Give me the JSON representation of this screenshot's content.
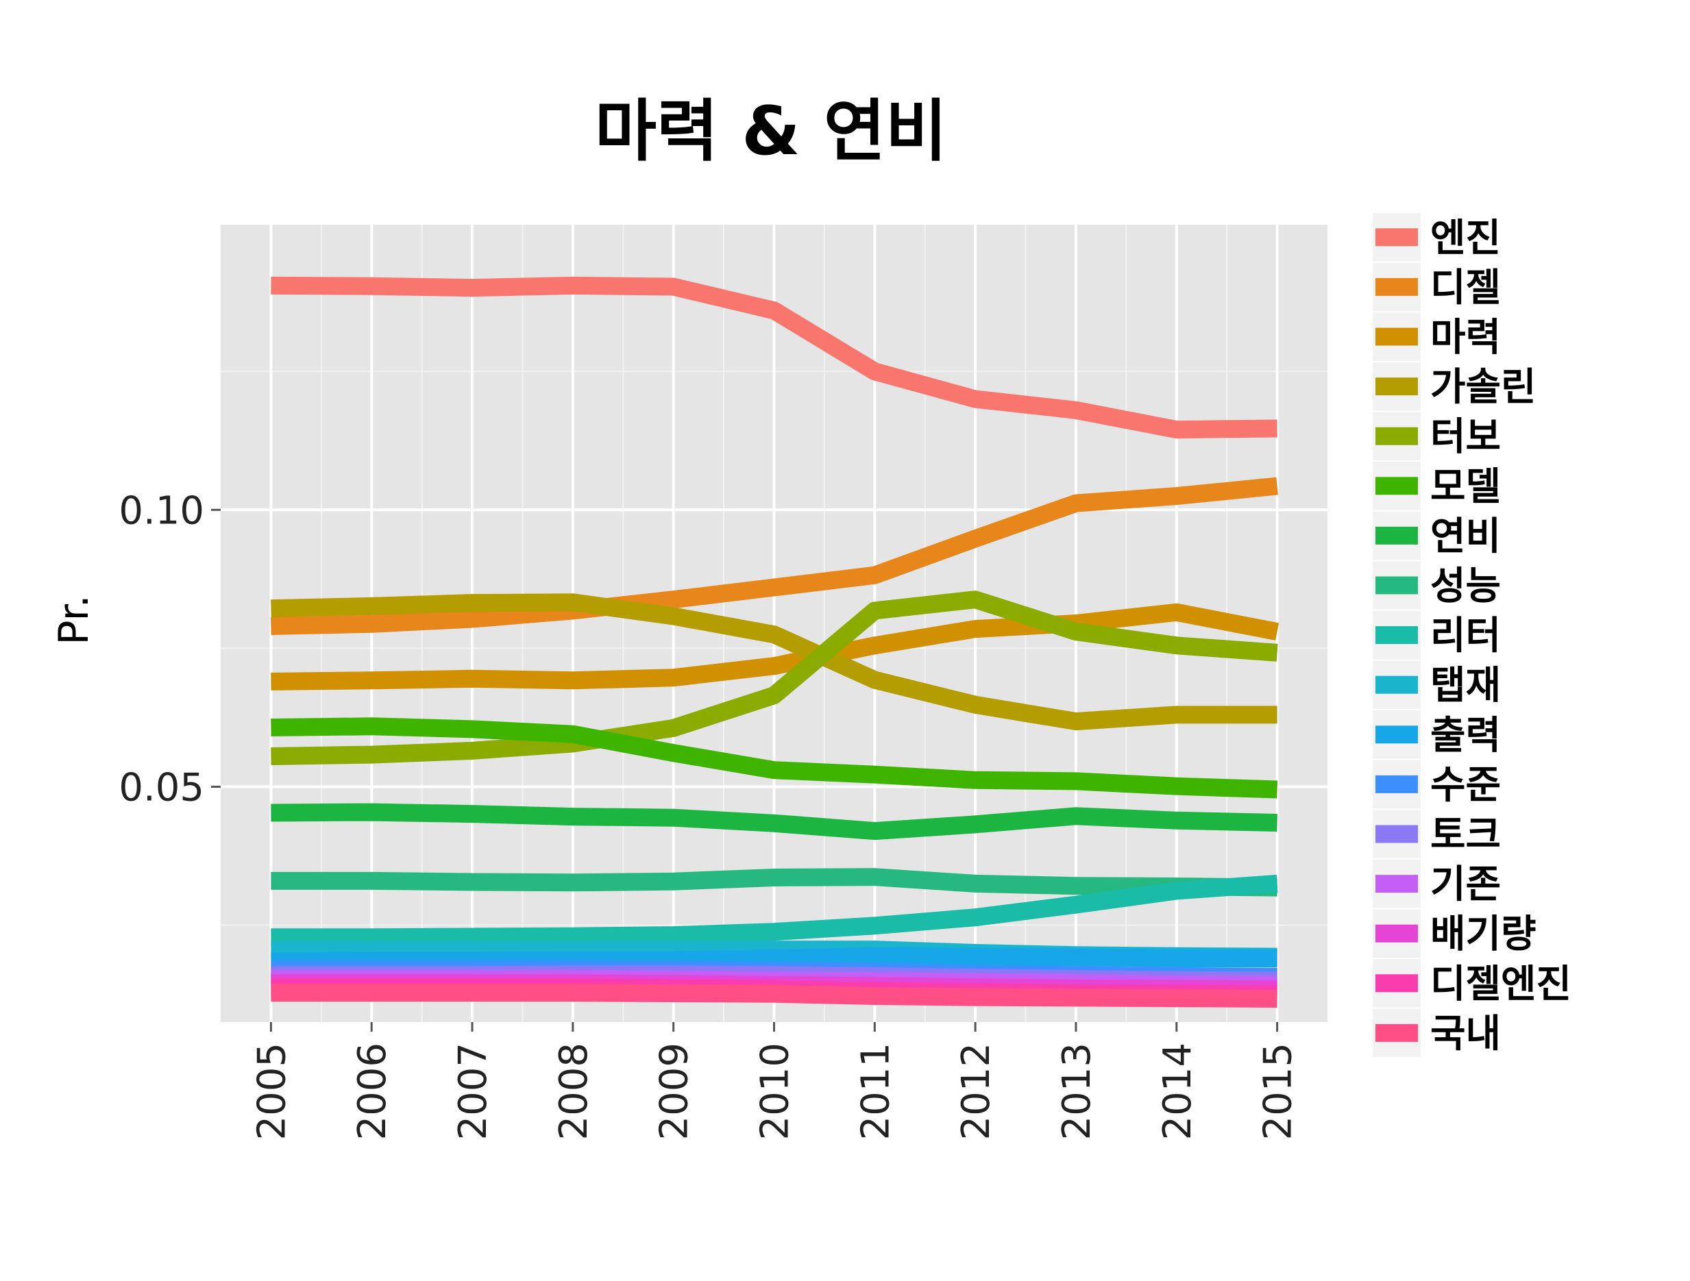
{
  "chart_data": {
    "type": "line",
    "title": "마력 & 연비",
    "xlabel": "",
    "ylabel": "Pr.",
    "x": [
      2005,
      2006,
      2007,
      2008,
      2009,
      2010,
      2011,
      2012,
      2013,
      2014,
      2015
    ],
    "x_tick_labels": [
      "2005",
      "2006",
      "2007",
      "2008",
      "2009",
      "2010",
      "2011",
      "2012",
      "2013",
      "2014",
      "2015"
    ],
    "y_ticks": [
      0.05,
      0.1
    ],
    "y_tick_labels": [
      "0.05",
      "0.10"
    ],
    "ylim": [
      0.0075,
      0.1515
    ],
    "grid": true,
    "legend_position": "right",
    "series": [
      {
        "name": "엔진",
        "color": "#F8766D",
        "values": [
          0.1405,
          0.1404,
          0.1401,
          0.1405,
          0.1403,
          0.136,
          0.125,
          0.12,
          0.118,
          0.1145,
          0.1147
        ]
      },
      {
        "name": "디젤",
        "color": "#E7861B",
        "values": [
          0.079,
          0.0794,
          0.0803,
          0.0818,
          0.0838,
          0.086,
          0.0882,
          0.0948,
          0.1012,
          0.1025,
          0.1043
        ]
      },
      {
        "name": "마력",
        "color": "#D09000",
        "values": [
          0.069,
          0.0692,
          0.0695,
          0.0692,
          0.0697,
          0.0718,
          0.0755,
          0.0785,
          0.0795,
          0.0815,
          0.078
        ]
      },
      {
        "name": "가솔린",
        "color": "#B49D00",
        "values": [
          0.0822,
          0.0826,
          0.0832,
          0.0833,
          0.0808,
          0.0775,
          0.0693,
          0.0648,
          0.0618,
          0.063,
          0.063
        ]
      },
      {
        "name": "터보",
        "color": "#8CAB00",
        "values": [
          0.0555,
          0.0558,
          0.0565,
          0.0578,
          0.0606,
          0.0665,
          0.0818,
          0.0838,
          0.078,
          0.0755,
          0.0742
        ]
      },
      {
        "name": "모델",
        "color": "#3EB400",
        "values": [
          0.0607,
          0.0609,
          0.0604,
          0.0595,
          0.0561,
          0.053,
          0.0522,
          0.0512,
          0.051,
          0.0501,
          0.0495
        ]
      },
      {
        "name": "연비",
        "color": "#1CB541",
        "values": [
          0.0453,
          0.0454,
          0.0451,
          0.0446,
          0.0444,
          0.0434,
          0.042,
          0.0432,
          0.0447,
          0.0439,
          0.0435
        ]
      },
      {
        "name": "성능",
        "color": "#27B881",
        "values": [
          0.033,
          0.033,
          0.0328,
          0.0327,
          0.0329,
          0.0336,
          0.0337,
          0.0325,
          0.0321,
          0.032,
          0.0318
        ]
      },
      {
        "name": "리터",
        "color": "#1ABBA7",
        "values": [
          0.0228,
          0.0228,
          0.0229,
          0.023,
          0.0232,
          0.0238,
          0.0249,
          0.0264,
          0.0287,
          0.0312,
          0.0325
        ]
      },
      {
        "name": "탭재",
        "color": "#1AB5CC",
        "values": [
          0.0205,
          0.0205,
          0.0205,
          0.0205,
          0.0205,
          0.0206,
          0.0206,
          0.02,
          0.0196,
          0.0194,
          0.0193
        ]
      },
      {
        "name": "출력",
        "color": "#17A6E8",
        "values": [
          0.0185,
          0.0186,
          0.0186,
          0.0187,
          0.0187,
          0.019,
          0.0194,
          0.0193,
          0.0192,
          0.019,
          0.019
        ]
      },
      {
        "name": "수준",
        "color": "#3D8EFF",
        "values": [
          0.017,
          0.017,
          0.017,
          0.017,
          0.0169,
          0.0168,
          0.0166,
          0.0162,
          0.016,
          0.0158,
          0.0157
        ]
      },
      {
        "name": "토크",
        "color": "#8B78F5",
        "values": [
          0.016,
          0.016,
          0.016,
          0.0161,
          0.0161,
          0.016,
          0.0158,
          0.0155,
          0.0153,
          0.0151,
          0.015
        ]
      },
      {
        "name": "기존",
        "color": "#C45FF5",
        "values": [
          0.0153,
          0.0153,
          0.0153,
          0.0153,
          0.0152,
          0.015,
          0.0149,
          0.0147,
          0.0145,
          0.0143,
          0.0142
        ]
      },
      {
        "name": "배기량",
        "color": "#E545D5",
        "values": [
          0.0145,
          0.0145,
          0.0145,
          0.0145,
          0.0144,
          0.0142,
          0.014,
          0.0138,
          0.0136,
          0.0135,
          0.0134
        ]
      },
      {
        "name": "디젤엔진",
        "color": "#F93DAE",
        "values": [
          0.0137,
          0.0137,
          0.0137,
          0.0137,
          0.0136,
          0.0134,
          0.0131,
          0.0129,
          0.0127,
          0.0126,
          0.0125
        ]
      },
      {
        "name": "국내",
        "color": "#FF4F86",
        "values": [
          0.0128,
          0.0128,
          0.0128,
          0.0128,
          0.0127,
          0.0126,
          0.0122,
          0.012,
          0.0119,
          0.0118,
          0.0117
        ]
      }
    ]
  }
}
